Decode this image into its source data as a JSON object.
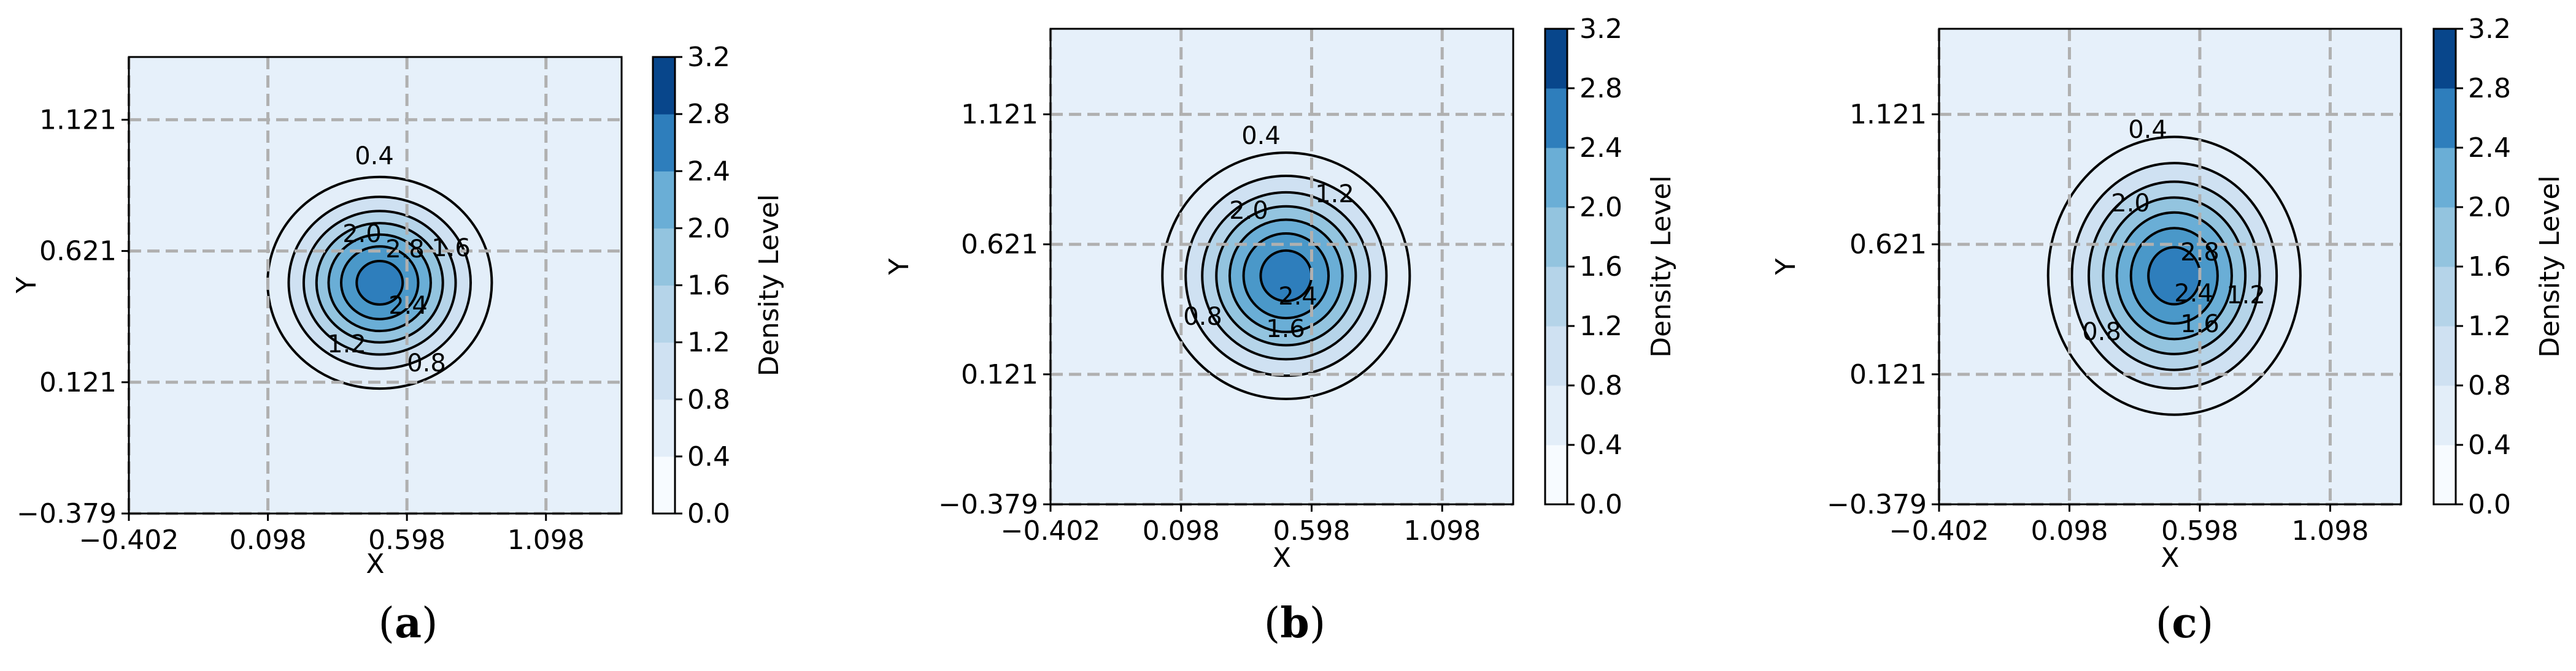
{
  "chart_data": [
    {
      "type": "contour",
      "caption_letter": "a",
      "xlabel": "X",
      "ylabel": "Y",
      "xticks": [
        -0.402,
        0.098,
        0.598,
        1.098
      ],
      "xtick_labels": [
        "−0.402",
        "0.098",
        "0.598",
        "1.098"
      ],
      "yticks": [
        -0.379,
        0.121,
        0.621,
        1.121
      ],
      "ytick_labels": [
        "−0.379",
        "0.121",
        "0.621",
        "1.121"
      ],
      "xlim": [
        -0.402,
        1.37
      ],
      "ylim": [
        -0.379,
        1.36
      ],
      "grid": true,
      "colorbar": {
        "label": "Density Level",
        "levels": [
          0.0,
          0.4,
          0.8,
          1.2,
          1.6,
          2.0,
          2.4,
          2.8,
          3.2
        ],
        "tick_labels": [
          "0.0",
          "0.4",
          "0.8",
          "1.2",
          "1.6",
          "2.0",
          "2.4",
          "2.8",
          "3.2"
        ]
      },
      "peak": {
        "x": 0.5,
        "y": 0.5,
        "value": 3.05
      },
      "spread": {
        "sx": 0.2,
        "sy": 0.2
      },
      "contour_labels": [
        {
          "text": "0.4"
        },
        {
          "text": "2.0"
        },
        {
          "text": "2.8"
        },
        {
          "text": "1.6"
        },
        {
          "text": "2.4"
        },
        {
          "text": "1.2"
        },
        {
          "text": "0.8"
        }
      ]
    },
    {
      "type": "contour",
      "caption_letter": "b",
      "xlabel": "X",
      "ylabel": "Y",
      "xticks": [
        -0.402,
        0.098,
        0.598,
        1.098
      ],
      "xtick_labels": [
        "−0.402",
        "0.098",
        "0.598",
        "1.098"
      ],
      "yticks": [
        -0.379,
        0.121,
        0.621,
        1.121
      ],
      "ytick_labels": [
        "−0.379",
        "0.121",
        "0.621",
        "1.121"
      ],
      "xlim": [
        -0.402,
        1.37
      ],
      "ylim": [
        -0.379,
        1.45
      ],
      "grid": true,
      "colorbar": {
        "label": "Density Level",
        "levels": [
          0.0,
          0.4,
          0.8,
          1.2,
          1.6,
          2.0,
          2.4,
          2.8,
          3.2
        ],
        "tick_labels": [
          "0.0",
          "0.4",
          "0.8",
          "1.2",
          "1.6",
          "2.0",
          "2.4",
          "2.8",
          "3.2"
        ]
      },
      "peak": {
        "x": 0.5,
        "y": 0.5,
        "value": 3.05
      },
      "spread": {
        "sx": 0.235,
        "sy": 0.235
      },
      "contour_labels": [
        {
          "text": "0.4"
        },
        {
          "text": "1.2"
        },
        {
          "text": "2.0"
        },
        {
          "text": "2.4"
        },
        {
          "text": "1.6"
        },
        {
          "text": "0.8"
        }
      ]
    },
    {
      "type": "contour",
      "caption_letter": "c",
      "xlabel": "X",
      "ylabel": "Y",
      "xticks": [
        -0.402,
        0.098,
        0.598,
        1.098
      ],
      "xtick_labels": [
        "−0.402",
        "0.098",
        "0.598",
        "1.098"
      ],
      "yticks": [
        -0.379,
        0.121,
        0.621,
        1.121
      ],
      "ytick_labels": [
        "−0.379",
        "0.121",
        "0.621",
        "1.121"
      ],
      "xlim": [
        -0.402,
        1.37
      ],
      "ylim": [
        -0.379,
        1.45
      ],
      "grid": true,
      "colorbar": {
        "label": "Density Level",
        "levels": [
          0.0,
          0.4,
          0.8,
          1.2,
          1.6,
          2.0,
          2.4,
          2.8,
          3.2
        ],
        "tick_labels": [
          "0.0",
          "0.4",
          "0.8",
          "1.2",
          "1.6",
          "2.0",
          "2.4",
          "2.8",
          "3.2"
        ]
      },
      "peak": {
        "x": 0.5,
        "y": 0.5,
        "value": 3.05
      },
      "spread": {
        "sx": 0.24,
        "sy": 0.265
      },
      "contour_labels": [
        {
          "text": "0.4"
        },
        {
          "text": "2.0"
        },
        {
          "text": "2.8"
        },
        {
          "text": "2.4"
        },
        {
          "text": "1.6"
        },
        {
          "text": "1.2"
        },
        {
          "text": "0.8"
        }
      ]
    }
  ],
  "colors": {
    "fill_bands": [
      "#f7fbff",
      "#e3eef9",
      "#cfe1f2",
      "#b5d4e9",
      "#93c4df",
      "#6aaed6",
      "#4a98c9",
      "#2e7ebc",
      "#1764ab",
      "#08468b"
    ],
    "background_band": "#e6f0fa",
    "grid": "#b0b0b0",
    "contour_line": "#000000"
  }
}
